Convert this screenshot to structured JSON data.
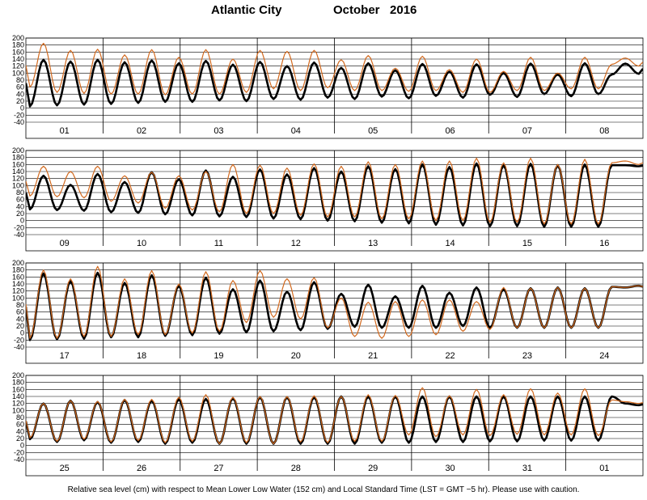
{
  "title": {
    "station": "Atlantic City",
    "month": "October",
    "year": "2016"
  },
  "footnote": "Relative sea level (cm) with respect to Mean Lower Low Water (152 cm) and Local Standard Time (LST = GMT −5 hr). Please use with caution.",
  "colors": {
    "predicted": "#000000",
    "observed": "#d2691e",
    "grid": "#000000"
  },
  "chart_data": {
    "type": "line",
    "ylim": [
      -40,
      200
    ],
    "yticks": [
      200,
      180,
      160,
      140,
      120,
      100,
      80,
      60,
      40,
      20,
      0,
      -20,
      -40
    ],
    "grid": true,
    "series": [
      {
        "name": "",
        "color": "#000000",
        "style": "thick"
      },
      {
        "name": "",
        "color": "#d2691e",
        "style": "thin"
      }
    ],
    "panels": [
      {
        "days": [
          "01",
          "02",
          "03",
          "04",
          "05",
          "06",
          "07",
          "08"
        ],
        "predicted": {
          "highs": [
            138,
            133,
            138,
            131,
            136,
            128,
            135,
            124,
            132,
            120,
            130,
            115,
            128,
            108,
            126,
            104,
            125,
            100,
            127,
            96,
            128,
            96,
            127,
            98
          ],
          "lows": [
            5,
            8,
            10,
            12,
            15,
            18,
            18,
            22,
            20,
            26,
            24,
            30,
            26,
            33,
            28,
            35,
            30,
            38,
            32,
            40,
            34,
            40
          ]
        },
        "observed": {
          "highs": [
            185,
            165,
            168,
            152,
            167,
            145,
            167,
            140,
            165,
            162,
            165,
            138,
            150,
            114,
            148,
            110,
            140,
            105,
            145,
            100,
            145,
            125,
            143,
            120
          ],
          "lows": [
            60,
            45,
            42,
            40,
            40,
            38,
            40,
            40,
            45,
            55,
            50,
            58,
            50,
            50,
            48,
            50,
            45,
            45,
            50,
            50,
            55,
            55
          ]
        }
      },
      {
        "days": [
          "09",
          "10",
          "11",
          "12",
          "13",
          "14",
          "15",
          "16"
        ],
        "predicted": {
          "highs": [
            128,
            102,
            133,
            110,
            138,
            118,
            143,
            125,
            146,
            132,
            150,
            140,
            155,
            147,
            160,
            153,
            163,
            158,
            162,
            158,
            160,
            158,
            158,
            155
          ],
          "lows": [
            32,
            30,
            28,
            24,
            22,
            18,
            15,
            12,
            10,
            6,
            4,
            0,
            -2,
            -6,
            -8,
            -12,
            -14,
            -16,
            -16,
            -18,
            -18,
            -18
          ]
        },
        "observed": {
          "highs": [
            155,
            140,
            155,
            128,
            138,
            128,
            140,
            160,
            158,
            150,
            162,
            155,
            168,
            160,
            170,
            170,
            178,
            165,
            178,
            160,
            175,
            165,
            170,
            160
          ],
          "lows": [
            70,
            68,
            65,
            55,
            50,
            35,
            30,
            25,
            20,
            20,
            15,
            10,
            10,
            5,
            5,
            0,
            0,
            -5,
            -5,
            -10,
            -10,
            -10
          ]
        }
      },
      {
        "days": [
          "17",
          "18",
          "19",
          "20",
          "21",
          "22",
          "23",
          "24"
        ],
        "predicted": {
          "highs": [
            170,
            148,
            172,
            143,
            165,
            135,
            158,
            125,
            150,
            118,
            145,
            112,
            138,
            105,
            135,
            115,
            130,
            125,
            128,
            130,
            128,
            132,
            130,
            135
          ],
          "lows": [
            -20,
            -18,
            -16,
            -12,
            -12,
            -8,
            -6,
            -2,
            2,
            5,
            8,
            12,
            18,
            15,
            15,
            15,
            20,
            15,
            15,
            15,
            15,
            15
          ]
        },
        "observed": {
          "highs": [
            180,
            155,
            190,
            155,
            178,
            140,
            175,
            150,
            178,
            155,
            158,
            100,
            88,
            90,
            95,
            95,
            90,
            130,
            128,
            130,
            128,
            132,
            130,
            135
          ],
          "lows": [
            -15,
            -15,
            -10,
            -10,
            -5,
            -5,
            0,
            5,
            30,
            45,
            40,
            15,
            -10,
            -15,
            -10,
            -5,
            5,
            10,
            15,
            15,
            15,
            15
          ]
        }
      },
      {
        "days": [
          "25",
          "26",
          "27",
          "28",
          "29",
          "30",
          "31",
          "01"
        ],
        "predicted": {
          "highs": [
            120,
            128,
            124,
            130,
            128,
            132,
            133,
            135,
            138,
            138,
            138,
            140,
            140,
            140,
            140,
            140,
            140,
            140,
            140,
            140,
            140,
            140,
            120,
            115
          ],
          "lows": [
            18,
            10,
            15,
            8,
            10,
            5,
            8,
            5,
            5,
            5,
            5,
            5,
            5,
            8,
            8,
            10,
            10,
            12,
            12,
            14,
            14,
            14
          ]
        },
        "observed": {
          "highs": [
            120,
            128,
            126,
            132,
            132,
            138,
            145,
            138,
            140,
            140,
            142,
            140,
            145,
            143,
            165,
            142,
            160,
            145,
            162,
            150,
            162,
            130,
            125,
            120
          ],
          "lows": [
            22,
            12,
            18,
            10,
            14,
            8,
            12,
            5,
            8,
            5,
            10,
            8,
            12,
            12,
            30,
            25,
            30,
            28,
            32,
            30,
            30,
            28
          ]
        }
      }
    ]
  }
}
